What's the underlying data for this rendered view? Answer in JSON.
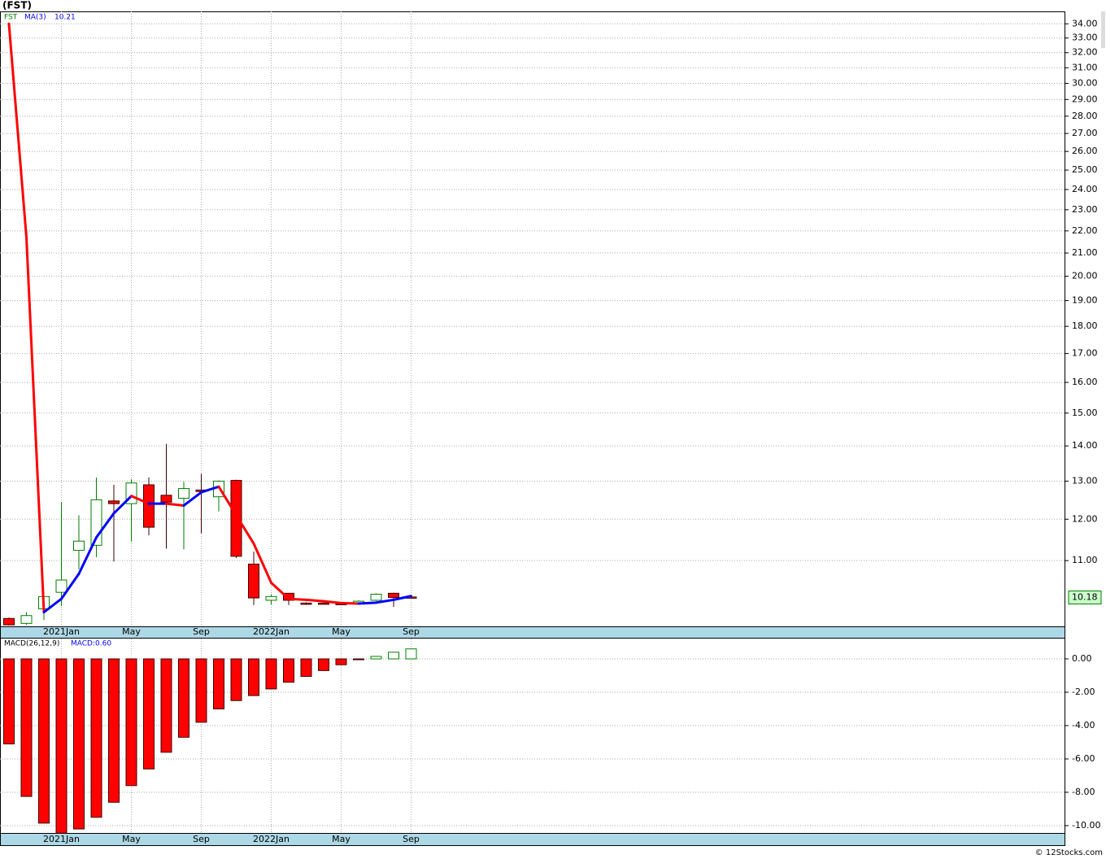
{
  "chart_data": [
    {
      "type": "candlestick",
      "title": "(FST)",
      "categories": [
        null,
        null,
        null,
        "2021Jan",
        null,
        null,
        null,
        "May",
        null,
        null,
        null,
        "Sep",
        null,
        null,
        null,
        "2022Jan",
        null,
        null,
        null,
        "May",
        null,
        null,
        null,
        "Sep"
      ],
      "series": [
        {
          "name": "FST",
          "color": "#008000",
          "down_color": "#ff0000",
          "open": [
            9.74,
            9.64,
            9.94,
            10.29,
            11.24,
            11.36,
            12.47,
            12.4,
            12.9,
            12.62,
            12.54,
            12.76,
            12.58,
            13.02,
            10.92,
            10.12,
            10.27,
            10.06,
            10.06,
            10.05,
            10.06,
            10.12,
            10.27,
            10.19
          ],
          "high": [
            9.76,
            9.87,
            10.29,
            12.44,
            12.1,
            13.1,
            12.9,
            13.05,
            13.1,
            14.06,
            12.98,
            13.2,
            13.02,
            13.04,
            11.21,
            10.25,
            10.27,
            10.08,
            10.08,
            10.07,
            10.12,
            10.27,
            10.28,
            10.2
          ],
          "low": [
            9.6,
            9.61,
            9.71,
            10.0,
            10.8,
            11.08,
            10.98,
            11.45,
            11.6,
            11.28,
            11.26,
            11.65,
            12.2,
            11.06,
            10.02,
            10.03,
            10.02,
            10.02,
            10.03,
            10.02,
            10.04,
            10.1,
            9.98,
            10.16
          ],
          "close": [
            9.61,
            9.8,
            10.2,
            10.56,
            11.46,
            12.5,
            12.4,
            12.95,
            11.8,
            12.44,
            12.8,
            12.72,
            13.0,
            11.1,
            10.17,
            10.2,
            10.12,
            10.04,
            10.05,
            10.04,
            10.1,
            10.25,
            10.18,
            10.18
          ]
        },
        {
          "name": "MA(3)",
          "color": "#0000ff",
          "down_color": "#ff0000",
          "last": 10.21,
          "values": [
            34.0,
            21.7,
            9.87,
            10.15,
            10.7,
            11.55,
            12.15,
            12.6,
            12.4,
            12.4,
            12.35,
            12.7,
            12.85,
            12.1,
            11.4,
            10.5,
            10.15,
            10.13,
            10.1,
            10.06,
            10.05,
            10.07,
            10.13,
            10.21
          ]
        }
      ],
      "last_price": 10.18,
      "last_price_color": "#008000",
      "ylim": [
        9.58,
        34.9
      ],
      "log_scale": true,
      "grid": true,
      "yticks": [
        {
          "value": 11,
          "label": "11.00"
        },
        {
          "value": 12,
          "label": "12.00"
        },
        {
          "value": 13,
          "label": "13.00"
        },
        {
          "value": 14,
          "label": "14.00"
        },
        {
          "value": 15,
          "label": "15.00"
        },
        {
          "value": 16,
          "label": "16.00"
        },
        {
          "value": 17,
          "label": "17.00"
        },
        {
          "value": 18,
          "label": "18.00"
        },
        {
          "value": 19,
          "label": "19.00"
        },
        {
          "value": 20,
          "label": "20.00"
        },
        {
          "value": 21,
          "label": "21.00"
        },
        {
          "value": 22,
          "label": "22.00"
        },
        {
          "value": 23,
          "label": "23.00"
        },
        {
          "value": 24,
          "label": "24.00"
        },
        {
          "value": 25,
          "label": "25.00"
        },
        {
          "value": 26,
          "label": "26.00"
        },
        {
          "value": 27,
          "label": "27.00"
        },
        {
          "value": 28,
          "label": "28.00"
        },
        {
          "value": 29,
          "label": "29.00"
        },
        {
          "value": 30,
          "label": "30.00"
        },
        {
          "value": 31,
          "label": "31.00"
        },
        {
          "value": 32,
          "label": "32.00"
        },
        {
          "value": 33,
          "label": "33.00"
        },
        {
          "value": 34,
          "label": "34.00"
        }
      ]
    },
    {
      "type": "bar",
      "categories": [
        null,
        null,
        null,
        "2021Jan",
        null,
        null,
        null,
        "May",
        null,
        null,
        null,
        "Sep",
        null,
        null,
        null,
        "2022Jan",
        null,
        null,
        null,
        "May",
        null,
        null,
        null,
        "Sep"
      ],
      "series": [
        {
          "name": "MACD(26,12,9)",
          "label": "MACD:0.60",
          "color": "#ff0000",
          "up_color": "#008000",
          "values": [
            -5.1,
            -8.25,
            -9.85,
            -10.45,
            -10.2,
            -9.5,
            -8.6,
            -7.6,
            -6.6,
            -5.6,
            -4.7,
            -3.8,
            -3.0,
            -2.5,
            -2.2,
            -1.8,
            -1.4,
            -1.05,
            -0.7,
            -0.35,
            -0.05,
            0.15,
            0.4,
            0.6
          ]
        }
      ],
      "ylim": [
        -10.49,
        1.22
      ],
      "grid": true,
      "yticks": [
        {
          "value": 0,
          "label": "0.00"
        },
        {
          "value": -2,
          "label": "-2.00"
        },
        {
          "value": -4,
          "label": "-4.00"
        },
        {
          "value": -6,
          "label": "-6.00"
        },
        {
          "value": -8,
          "label": "-8.00"
        },
        {
          "value": -10,
          "label": "-10.00"
        }
      ]
    }
  ],
  "copyright": "© 12Stocks.com"
}
